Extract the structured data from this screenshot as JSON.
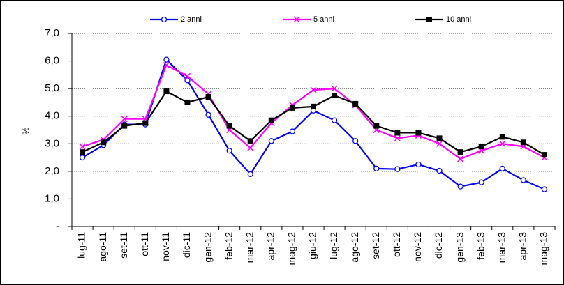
{
  "chart_data": {
    "type": "line",
    "y_label": "%",
    "categories": [
      "lug-11",
      "ago-11",
      "set-11",
      "ott-11",
      "nov-11",
      "dic-11",
      "gen-12",
      "feb-12",
      "mar-12",
      "apr-12",
      "mag-12",
      "giu-12",
      "lug-12",
      "ago-12",
      "set-12",
      "ott-12",
      "nov-12",
      "dic-12",
      "gen-13",
      "feb-13",
      "mar-13",
      "apr-13",
      "mag-13"
    ],
    "series": [
      {
        "name": "2 anni",
        "color": "#0000ff",
        "marker": "circle",
        "values": [
          2.5,
          2.95,
          3.7,
          3.7,
          6.05,
          5.3,
          4.05,
          2.75,
          1.9,
          3.1,
          3.45,
          4.2,
          3.85,
          3.1,
          2.1,
          2.08,
          2.25,
          2.02,
          1.45,
          1.6,
          2.1,
          1.68,
          1.35
        ]
      },
      {
        "name": "5 anni",
        "color": "#ff00ff",
        "marker": "cross",
        "values": [
          2.9,
          3.15,
          3.9,
          3.9,
          5.85,
          5.45,
          4.8,
          3.5,
          2.85,
          3.75,
          4.4,
          4.95,
          5.0,
          4.4,
          3.5,
          3.2,
          3.3,
          3.0,
          2.45,
          2.75,
          3.0,
          2.9,
          2.5
        ]
      },
      {
        "name": "10 anni",
        "color": "#000000",
        "marker": "square",
        "values": [
          2.7,
          3.05,
          3.65,
          3.75,
          4.9,
          4.5,
          4.7,
          3.65,
          3.1,
          3.85,
          4.3,
          4.35,
          4.75,
          4.45,
          3.65,
          3.4,
          3.4,
          3.2,
          2.7,
          2.9,
          3.25,
          3.05,
          2.6
        ]
      }
    ],
    "ylim": [
      0,
      7
    ],
    "yticks": [
      {
        "value": 0,
        "label": "-"
      },
      {
        "value": 1,
        "label": "1,0"
      },
      {
        "value": 2,
        "label": "2,0"
      },
      {
        "value": 3,
        "label": "3,0"
      },
      {
        "value": 4,
        "label": "4,0"
      },
      {
        "value": 5,
        "label": "5,0"
      },
      {
        "value": 6,
        "label": "6,0"
      },
      {
        "value": 7,
        "label": "7,0"
      }
    ],
    "grid": true
  }
}
